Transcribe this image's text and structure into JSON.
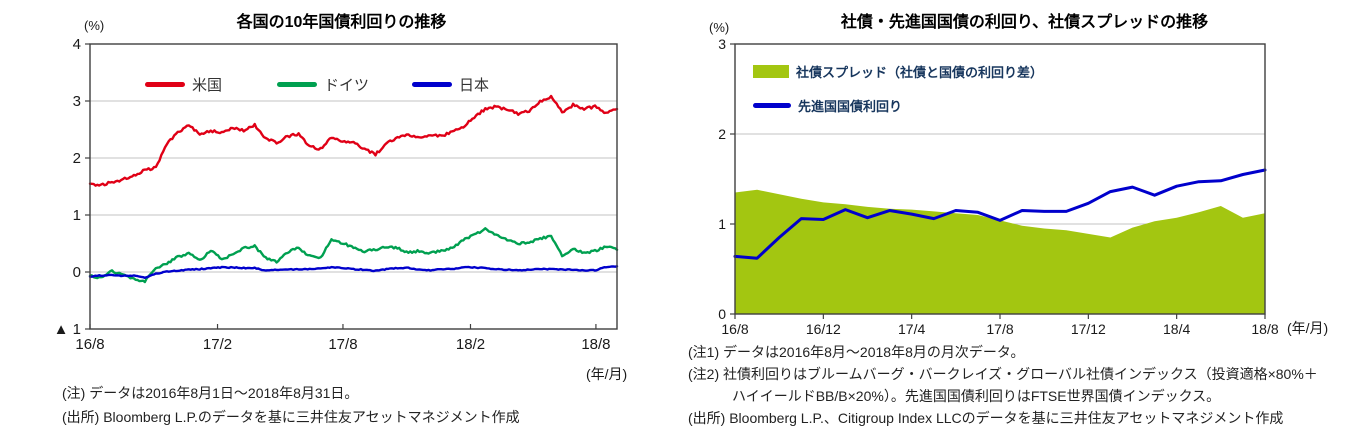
{
  "chart_data": [
    {
      "type": "line",
      "title": "各国の10年国債利回りの推移",
      "y_unit": "(%)",
      "x_unit": "(年/月)",
      "ylim": [
        -1,
        4
      ],
      "grid": true,
      "legend_position": "top-inside",
      "y_ticks": [
        {
          "v": 4,
          "label": "4"
        },
        {
          "v": 3,
          "label": "3"
        },
        {
          "v": 2,
          "label": "2"
        },
        {
          "v": 1,
          "label": "1"
        },
        {
          "v": 0,
          "label": "0"
        },
        {
          "v": -1,
          "label": "▲ 1"
        }
      ],
      "x_ticks": [
        {
          "pos": 0.0,
          "label": "16/8"
        },
        {
          "pos": 0.242,
          "label": "17/2"
        },
        {
          "pos": 0.48,
          "label": "17/8"
        },
        {
          "pos": 0.722,
          "label": "18/2"
        },
        {
          "pos": 0.96,
          "label": "18/8"
        }
      ],
      "x_range": "2016/8/1 - 2018/8/31 (daily, sampled half-monthly)",
      "series": [
        {
          "name": "米国",
          "kind": "line",
          "color": "#e00016",
          "values": [
            1.55,
            1.52,
            1.58,
            1.62,
            1.7,
            1.79,
            1.83,
            2.25,
            2.45,
            2.58,
            2.42,
            2.48,
            2.44,
            2.52,
            2.48,
            2.58,
            2.35,
            2.26,
            2.38,
            2.42,
            2.2,
            2.16,
            2.36,
            2.3,
            2.26,
            2.16,
            2.06,
            2.26,
            2.36,
            2.4,
            2.36,
            2.4,
            2.38,
            2.46,
            2.55,
            2.72,
            2.86,
            2.9,
            2.85,
            2.78,
            2.82,
            3.0,
            3.08,
            2.8,
            2.93,
            2.87,
            2.9,
            2.79,
            2.86
          ]
        },
        {
          "name": "ドイツ",
          "kind": "line",
          "color": "#00a050",
          "values": [
            -0.07,
            -0.1,
            0.02,
            -0.05,
            -0.12,
            -0.16,
            0.05,
            0.15,
            0.27,
            0.32,
            0.2,
            0.38,
            0.22,
            0.3,
            0.42,
            0.45,
            0.25,
            0.18,
            0.35,
            0.42,
            0.28,
            0.25,
            0.57,
            0.5,
            0.44,
            0.36,
            0.4,
            0.44,
            0.42,
            0.34,
            0.37,
            0.33,
            0.37,
            0.42,
            0.56,
            0.66,
            0.75,
            0.64,
            0.56,
            0.5,
            0.52,
            0.58,
            0.64,
            0.28,
            0.42,
            0.33,
            0.37,
            0.45,
            0.39
          ]
        },
        {
          "name": "日本",
          "kind": "line",
          "color": "#0000cc",
          "values": [
            -0.08,
            -0.06,
            -0.05,
            -0.07,
            -0.06,
            -0.1,
            -0.03,
            0.01,
            0.02,
            0.04,
            0.05,
            0.07,
            0.08,
            0.08,
            0.07,
            0.07,
            0.02,
            0.04,
            0.04,
            0.05,
            0.05,
            0.06,
            0.08,
            0.07,
            0.05,
            0.04,
            0.02,
            0.05,
            0.07,
            0.07,
            0.04,
            0.03,
            0.05,
            0.05,
            0.08,
            0.08,
            0.07,
            0.05,
            0.04,
            0.03,
            0.04,
            0.05,
            0.05,
            0.04,
            0.04,
            0.03,
            0.03,
            0.09,
            0.1
          ]
        }
      ],
      "notes": [
        "(注) データは2016年8月1日～2018年8月31日。",
        "(出所) Bloomberg L.P.のデータを基に三井住友アセットマネジメント作成"
      ]
    },
    {
      "type": "area+line",
      "title": "社債・先進国国債の利回り、社債スプレッドの推移",
      "y_unit": "(%)",
      "x_unit": "(年/月)",
      "ylim": [
        0,
        3
      ],
      "grid": true,
      "legend_position": "top-inside",
      "y_ticks": [
        {
          "v": 3,
          "label": "3"
        },
        {
          "v": 2,
          "label": "2"
        },
        {
          "v": 1,
          "label": "1"
        },
        {
          "v": 0,
          "label": "0"
        }
      ],
      "x_ticks": [
        {
          "pos": 0.0,
          "label": "16/8"
        },
        {
          "pos": 0.1667,
          "label": "16/12"
        },
        {
          "pos": 0.3333,
          "label": "17/4"
        },
        {
          "pos": 0.5,
          "label": "17/8"
        },
        {
          "pos": 0.6667,
          "label": "17/12"
        },
        {
          "pos": 0.8333,
          "label": "18/4"
        },
        {
          "pos": 1.0,
          "label": "18/8"
        }
      ],
      "categories": [
        "16/8",
        "16/9",
        "16/10",
        "16/11",
        "16/12",
        "17/1",
        "17/2",
        "17/3",
        "17/4",
        "17/5",
        "17/6",
        "17/7",
        "17/8",
        "17/9",
        "17/10",
        "17/11",
        "17/12",
        "18/1",
        "18/2",
        "18/3",
        "18/4",
        "18/5",
        "18/6",
        "18/7",
        "18/8"
      ],
      "series": [
        {
          "name": "社債スプレッド（社債と国債の利回り差）",
          "kind": "area",
          "color": "#a3c611",
          "values": [
            1.35,
            1.38,
            1.33,
            1.28,
            1.24,
            1.22,
            1.19,
            1.17,
            1.16,
            1.14,
            1.12,
            1.1,
            1.04,
            0.98,
            0.95,
            0.93,
            0.89,
            0.85,
            0.96,
            1.03,
            1.07,
            1.13,
            1.2,
            1.07,
            1.12
          ]
        },
        {
          "name": "先進国国債利回り",
          "kind": "line",
          "color": "#0000cc",
          "values": [
            0.64,
            0.62,
            0.85,
            1.06,
            1.05,
            1.16,
            1.07,
            1.15,
            1.11,
            1.06,
            1.15,
            1.13,
            1.04,
            1.15,
            1.14,
            1.14,
            1.23,
            1.36,
            1.41,
            1.32,
            1.42,
            1.47,
            1.48,
            1.55,
            1.6
          ]
        }
      ],
      "notes": [
        "(注1) データは2016年8月～2018年8月の月次データ。",
        "(注2) 社債利回りはブルームバーグ・バークレイズ・グローバル社債インデックス（投資適格×80%＋",
        "ハイイールドBB/B×20%）。先進国国債利回りはFTSE世界国債インデックス。",
        "(出所) Bloomberg L.P.、Citigroup Index LLCのデータを基に三井住友アセットマネジメント作成"
      ]
    }
  ]
}
